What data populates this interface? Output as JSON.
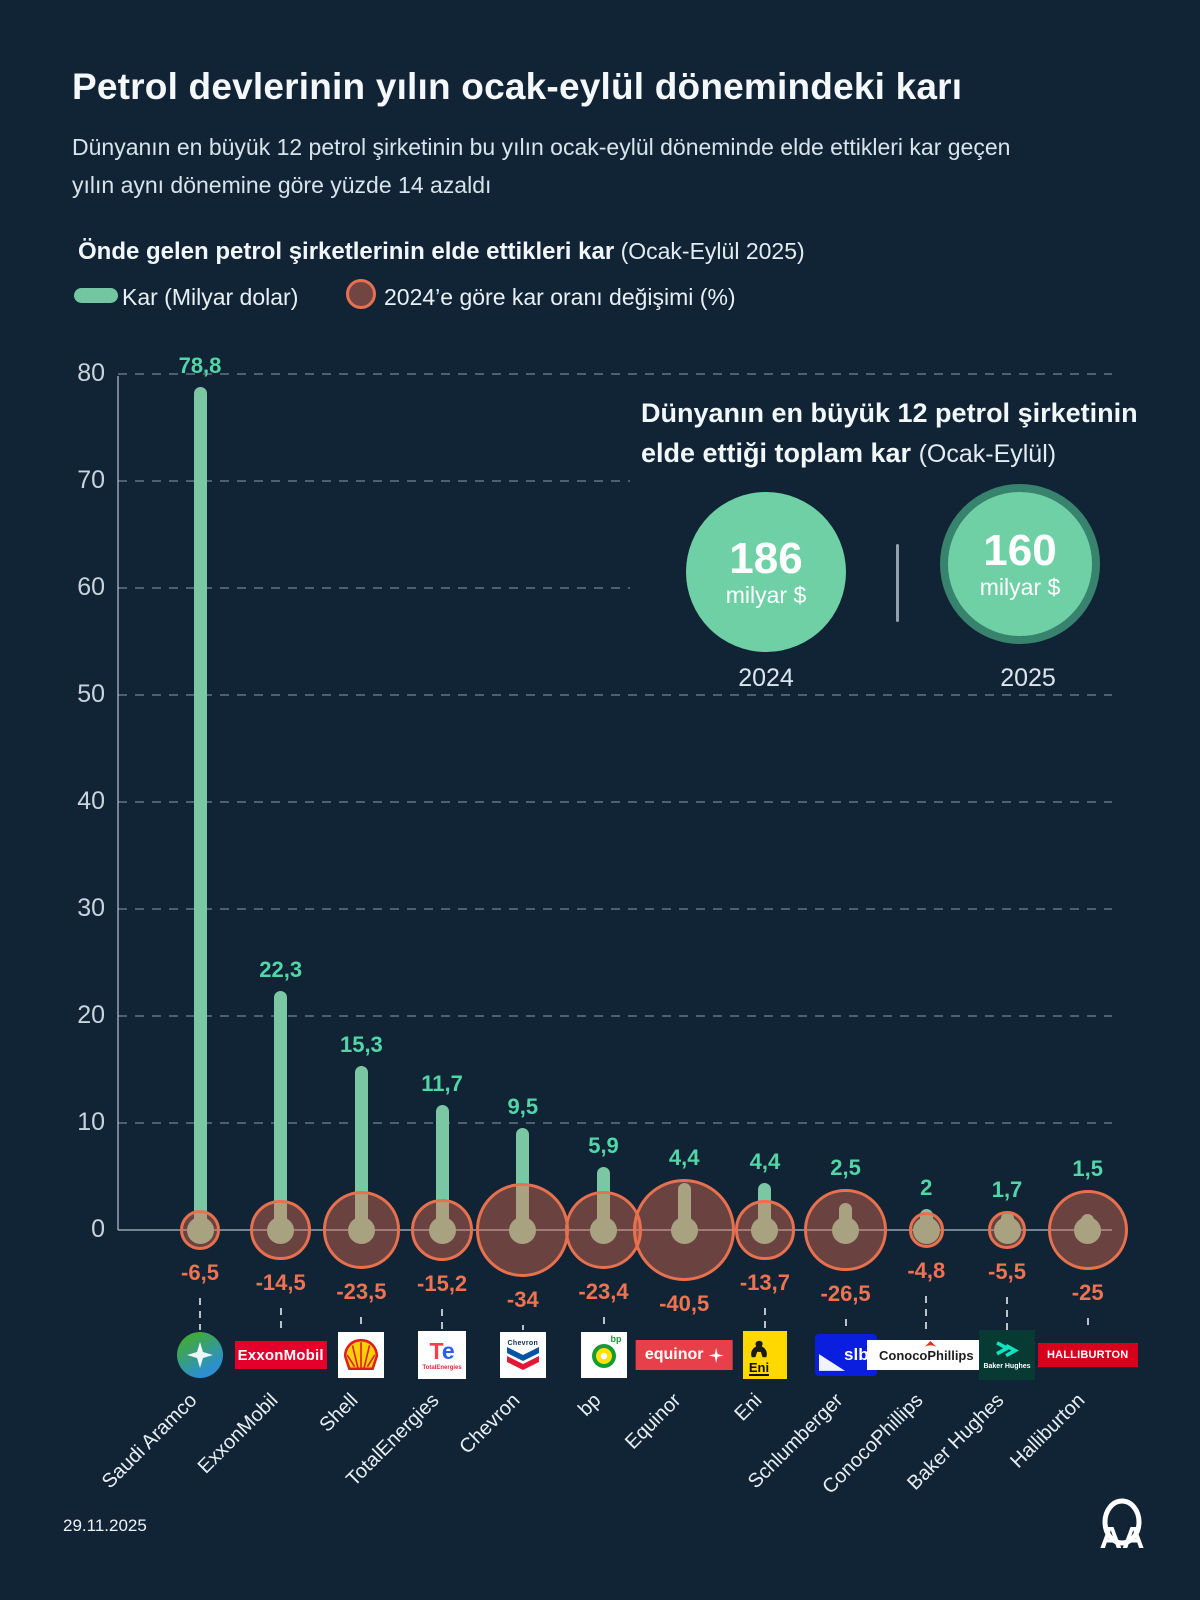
{
  "page": {
    "background": "#112436"
  },
  "header": {
    "title": "Petrol devlerinin yılın ocak-eylül dönemindeki karı",
    "subtitle": "Dünyanın en büyük 12 petrol şirketinin bu yılın ocak-eylül döneminde elde ettikleri kar geçen yılın aynı dönemine göre yüzde 14 azaldı"
  },
  "section": {
    "heading_bold": "Önde gelen petrol şirketlerinin elde ettikleri kar",
    "heading_note": " (Ocak-Eylül 2025)"
  },
  "legend": {
    "profit_label": "Kar (Milyar dolar)",
    "change_label": "2024’e göre kar oranı değişimi (%)"
  },
  "inset": {
    "title_line1": "Dünyanın en büyük 12 petrol şirketinin",
    "title_line2_bold": "elde ettiği toplam kar ",
    "title_line2_note": "(Ocak-Eylül)",
    "total_2024": {
      "value": "186",
      "unit": "milyar $",
      "year": "2024"
    },
    "total_2025": {
      "value": "160",
      "unit": "milyar $",
      "year": "2025"
    }
  },
  "footer": {
    "date": "29.11.2025",
    "agency": "AA"
  },
  "chart_data": {
    "type": "bar",
    "variant": "lollipop",
    "title": "Önde gelen petrol şirketlerinin elde ettikleri kar (Ocak-Eylül 2025)",
    "ylabel": "Kar (Milyar dolar)",
    "ylim": [
      0,
      80
    ],
    "y_axis": {
      "ticks": [
        0,
        10,
        20,
        30,
        40,
        50,
        60,
        70,
        80
      ],
      "grid": "dashed"
    },
    "series": [
      {
        "name": "Kar (Milyar dolar)",
        "unit": "milyar dolar"
      },
      {
        "name": "2024’e göre kar oranı değişimi (%)",
        "unit": "%"
      }
    ],
    "totals": {
      "year_2024": 186,
      "year_2025": 160,
      "note": "Ocak-Eylül"
    },
    "companies": [
      {
        "name": "Saudi Aramco",
        "profit": 78.8,
        "profit_label": "78,8",
        "change": -6.5,
        "change_label": "-6,5",
        "logo": {
          "kind": "aramco"
        }
      },
      {
        "name": "ExxonMobil",
        "profit": 22.3,
        "profit_label": "22,3",
        "change": -14.5,
        "change_label": "-14,5",
        "logo": {
          "kind": "box",
          "bg": "#e4002b",
          "fg": "#ffffff",
          "text": "ExxonMobil",
          "fs": 15,
          "w": 92,
          "h": 28
        }
      },
      {
        "name": "Shell",
        "profit": 15.3,
        "profit_label": "15,3",
        "change": -23.5,
        "change_label": "-23,5",
        "logo": {
          "kind": "shell"
        }
      },
      {
        "name": "TotalEnergies",
        "profit": 11.7,
        "profit_label": "11,7",
        "change": -15.2,
        "change_label": "-15,2",
        "logo": {
          "kind": "te",
          "text": "TotalEnergies"
        }
      },
      {
        "name": "Chevron",
        "profit": 9.5,
        "profit_label": "9,5",
        "change": -34,
        "change_label": "-34",
        "logo": {
          "kind": "chevron",
          "text": "Chevron"
        }
      },
      {
        "name": "bp",
        "profit": 5.9,
        "profit_label": "5,9",
        "change": -23.4,
        "change_label": "-23,4",
        "logo": {
          "kind": "bp",
          "text": "bp"
        }
      },
      {
        "name": "Equinor",
        "profit": 4.4,
        "profit_label": "4,4",
        "change": -40.5,
        "change_label": "-40,5",
        "logo": {
          "kind": "equinor",
          "text": "equinor"
        }
      },
      {
        "name": "Eni",
        "profit": 4.4,
        "profit_label": "4,4",
        "change": -13.7,
        "change_label": "-13,7",
        "logo": {
          "kind": "eni",
          "text": "Eni"
        }
      },
      {
        "name": "Schlumberger",
        "profit": 2.5,
        "profit_label": "2,5",
        "change": -26.5,
        "change_label": "-26,5",
        "logo": {
          "kind": "slb",
          "text": "slb"
        }
      },
      {
        "name": "ConocoPhillips",
        "profit": 2,
        "profit_label": "2",
        "change": -4.8,
        "change_label": "-4,8",
        "logo": {
          "kind": "conoco",
          "text": "ConocoPhillips"
        }
      },
      {
        "name": "Baker Hughes",
        "profit": 1.7,
        "profit_label": "1,7",
        "change": -5.5,
        "change_label": "-5,5",
        "logo": {
          "kind": "baker",
          "text": "Baker Hughes"
        }
      },
      {
        "name": "Halliburton",
        "profit": 1.5,
        "profit_label": "1,5",
        "change": -25,
        "change_label": "-25",
        "logo": {
          "kind": "box",
          "bg": "#d6001c",
          "fg": "#ffffff",
          "text": "HALLIBURTON",
          "fs": 11,
          "w": 100,
          "h": 24
        }
      }
    ]
  }
}
